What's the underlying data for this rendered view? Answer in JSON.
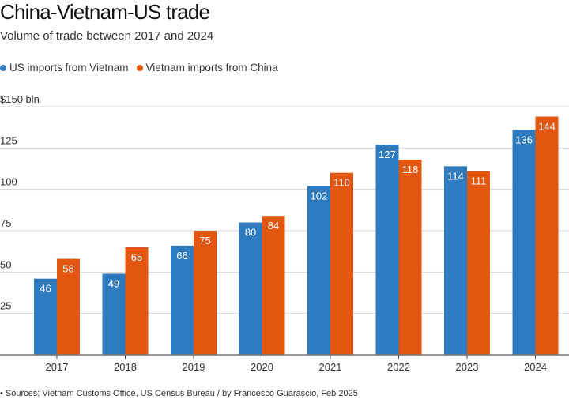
{
  "chart_data": {
    "type": "bar",
    "title": "China-Vietnam-US trade",
    "subtitle": "Volume of trade between 2017 and 2024",
    "ylabel": "",
    "y_unit_label": "$150 bln",
    "ylim": [
      0,
      150
    ],
    "yticks": [
      25,
      50,
      75,
      100,
      125,
      150
    ],
    "ytick_labels": [
      "25",
      "50",
      "75",
      "100",
      "125",
      "$150 bln"
    ],
    "grid": true,
    "legend_placement": "top-left",
    "categories": [
      "2017",
      "2018",
      "2019",
      "2020",
      "2021",
      "2022",
      "2023",
      "2024"
    ],
    "series": [
      {
        "name": "US imports from Vietnam",
        "color": "#2f7bbf",
        "values": [
          46,
          49,
          66,
          80,
          102,
          127,
          114,
          136
        ]
      },
      {
        "name": "Vietnam imports from China",
        "color": "#e2560f",
        "values": [
          58,
          65,
          75,
          84,
          110,
          118,
          111,
          144
        ]
      }
    ],
    "source": "• Sources: Vietnam Customs Office, US Census Bureau / by Francesco Guarascio, Feb 2025"
  }
}
